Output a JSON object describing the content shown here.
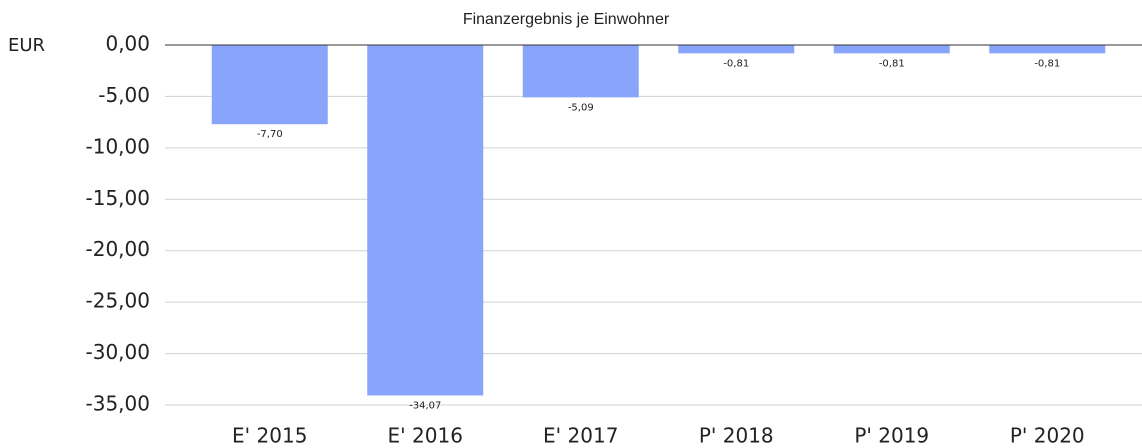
{
  "chart_data": {
    "type": "bar",
    "title": "Finanzergebnis je Einwohner",
    "y_label": "EUR",
    "categories": [
      "E' 2015",
      "E' 2016",
      "E' 2017",
      "P' 2018",
      "P' 2019",
      "P' 2020"
    ],
    "values": [
      -7.7,
      -34.07,
      -5.09,
      -0.81,
      -0.81,
      -0.81
    ],
    "value_labels": [
      "-7,70",
      "-34,07",
      "-5,09",
      "-0,81",
      "-0,81",
      "-0,81"
    ],
    "color": "#89a4fb",
    "ylim": [
      -35,
      0
    ],
    "yticks": [
      {
        "value": 0,
        "label": "0,00"
      },
      {
        "value": -5,
        "label": "-5,00"
      },
      {
        "value": -10,
        "label": "-10,00"
      },
      {
        "value": -15,
        "label": "-15,00"
      },
      {
        "value": -20,
        "label": "-20,00"
      },
      {
        "value": -25,
        "label": "-25,00"
      },
      {
        "value": -30,
        "label": "-30,00"
      },
      {
        "value": -35,
        "label": "-35,00"
      }
    ],
    "grid": true
  }
}
